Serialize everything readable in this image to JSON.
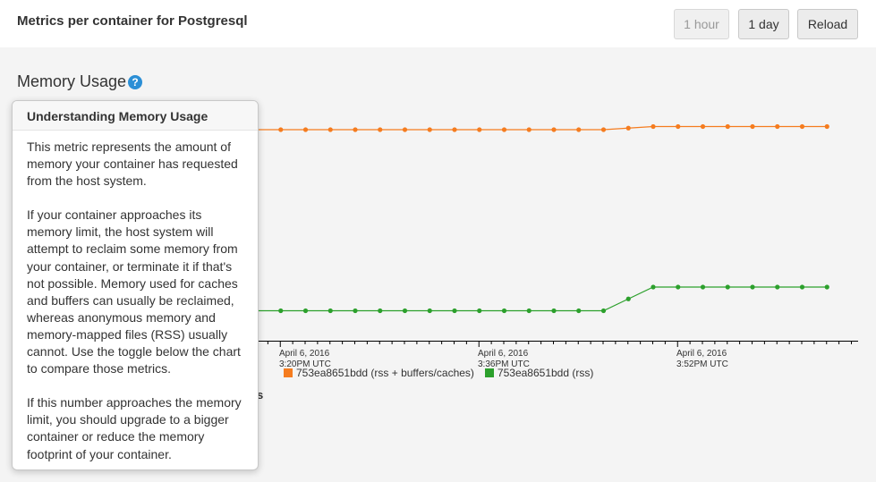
{
  "header": {
    "title": "Metrics per container for Postgresql",
    "buttons": {
      "hour": "1 hour",
      "day": "1 day",
      "reload": "Reload"
    }
  },
  "section": {
    "title": "Memory Usage",
    "help_glyph": "?"
  },
  "popover": {
    "title": "Understanding Memory Usage",
    "paragraphs": [
      "This metric represents the amount of memory your container has requested from the host system.",
      "If your container approaches its memory limit, the host system will attempt to reclaim some memory from your container, or terminate it if that's not possible. Memory used for caches and buffers can usually be reclaimed, whereas anonymous memory and memory-mapped files (RSS) usually cannot. Use the toggle below the chart to compare those metrics.",
      "If this number approaches the memory limit, you should upgrade to a bigger container or reduce the memory footprint of your container."
    ]
  },
  "partial_label": "s",
  "colors": {
    "orange": "#f57c1f",
    "green": "#2ca02c"
  },
  "chart_data": {
    "type": "line",
    "title": "Memory Usage",
    "x_tick_labels": [
      {
        "date": "April 6, 2016",
        "time": "3:20PM UTC"
      },
      {
        "date": "April 6, 2016",
        "time": "3:36PM UTC"
      },
      {
        "date": "April 6, 2016",
        "time": "3:52PM UTC"
      }
    ],
    "series": [
      {
        "name": "753ea8651bdd (rss + buffers/caches)",
        "color": "#f57c1f",
        "values": [
          0.0,
          0.0,
          0.0,
          0.0,
          0.0,
          0.0,
          0.0,
          0.0,
          0.0,
          0.0,
          0.0,
          0.0,
          0.0,
          0.0,
          0.0,
          0.0,
          0.0,
          0.0,
          0.0,
          0.5,
          1.0,
          1.0,
          1.0,
          1.0,
          1.0,
          1.0,
          1.0,
          1.0
        ]
      },
      {
        "name": "753ea8651bdd (rss)",
        "color": "#2ca02c",
        "values": [
          0.0,
          0.0,
          0.0,
          0.0,
          0.0,
          0.0,
          0.0,
          0.0,
          0.0,
          0.0,
          0.0,
          0.0,
          0.0,
          0.0,
          0.0,
          0.0,
          0.0,
          0.0,
          0.0,
          0.5,
          1.0,
          1.0,
          1.0,
          1.0,
          1.0,
          1.0,
          1.0,
          1.0
        ]
      }
    ]
  }
}
